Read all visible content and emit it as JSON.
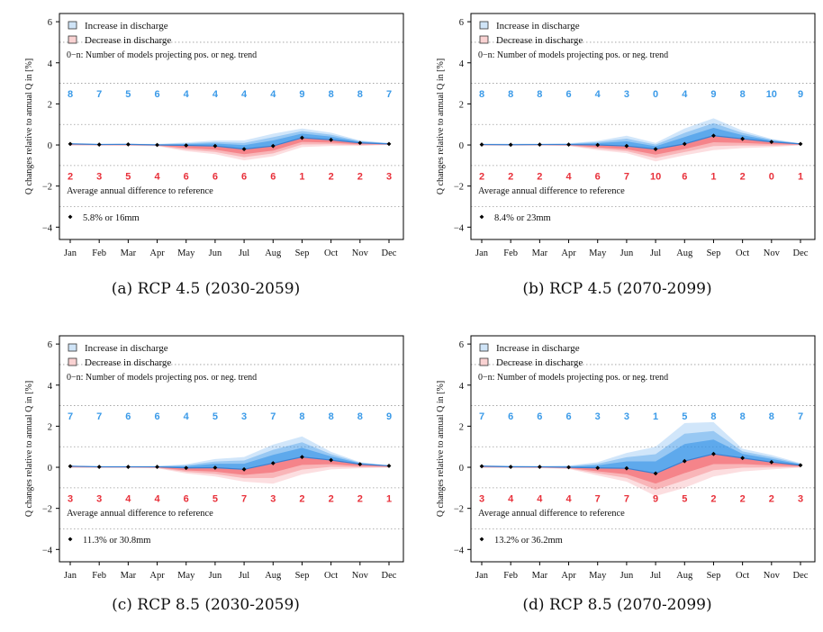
{
  "labels": {
    "ylabel": "Q changes relative to annual Q in [%]",
    "legend_increase": "Increase in discharge",
    "legend_decrease": "Decrease in discharge",
    "legend_count": "0−n: Number of models projecting pos. or neg. trend",
    "avg_title": "Average annual difference to reference"
  },
  "colors": {
    "increase": "#2f8fe6",
    "decrease": "#ef4a52",
    "increase_count_text": "#3a9ae8",
    "decrease_count_text": "#e8303a"
  },
  "chart_data": [
    {
      "type": "area",
      "caption": "(a)  RCP 4.5 (2030-2059)",
      "categories": [
        "Jan",
        "Feb",
        "Mar",
        "Apr",
        "May",
        "Jun",
        "Jul",
        "Aug",
        "Sep",
        "Oct",
        "Nov",
        "Dec"
      ],
      "ylim": [
        -4.6,
        6.4
      ],
      "yticks": [
        -4,
        -2,
        0,
        2,
        4,
        6
      ],
      "grid": true,
      "median": [
        0.05,
        0.02,
        0.03,
        0.0,
        -0.02,
        -0.05,
        -0.2,
        -0.05,
        0.35,
        0.25,
        0.1,
        0.05
      ],
      "increase_band": [
        0.1,
        0.06,
        0.06,
        0.05,
        0.12,
        0.22,
        0.22,
        0.55,
        0.8,
        0.6,
        0.22,
        0.1
      ],
      "decrease_band": [
        -0.03,
        -0.03,
        -0.04,
        -0.06,
        -0.3,
        -0.45,
        -0.75,
        -0.55,
        -0.1,
        -0.05,
        -0.05,
        0.0
      ],
      "n_increase": [
        8,
        7,
        5,
        6,
        4,
        4,
        4,
        4,
        9,
        8,
        8,
        7
      ],
      "n_decrease": [
        2,
        3,
        5,
        4,
        6,
        6,
        6,
        6,
        1,
        2,
        2,
        3
      ],
      "annual_difference": "5.8% or 16mm"
    },
    {
      "type": "area",
      "caption": "(b)  RCP 4.5 (2070-2099)",
      "categories": [
        "Jan",
        "Feb",
        "Mar",
        "Apr",
        "May",
        "Jun",
        "Jul",
        "Aug",
        "Sep",
        "Oct",
        "Nov",
        "Dec"
      ],
      "ylim": [
        -4.6,
        6.4
      ],
      "yticks": [
        -4,
        -2,
        0,
        2,
        4,
        6
      ],
      "grid": true,
      "median": [
        0.02,
        0.01,
        0.02,
        0.02,
        0.0,
        -0.05,
        -0.2,
        0.05,
        0.45,
        0.3,
        0.15,
        0.05
      ],
      "increase_band": [
        0.06,
        0.06,
        0.06,
        0.08,
        0.2,
        0.45,
        0.1,
        0.8,
        1.3,
        0.7,
        0.3,
        0.08
      ],
      "decrease_band": [
        -0.03,
        -0.03,
        -0.03,
        -0.05,
        -0.25,
        -0.4,
        -0.8,
        -0.5,
        -0.25,
        -0.15,
        -0.1,
        -0.02
      ],
      "n_increase": [
        8,
        8,
        8,
        6,
        4,
        3,
        0,
        4,
        9,
        8,
        10,
        9
      ],
      "n_decrease": [
        2,
        2,
        2,
        4,
        6,
        7,
        10,
        6,
        1,
        2,
        0,
        1
      ],
      "annual_difference": "8.4% or 23mm"
    },
    {
      "type": "area",
      "caption": "(c)  RCP 8.5 (2030-2059)",
      "categories": [
        "Jan",
        "Feb",
        "Mar",
        "Apr",
        "May",
        "Jun",
        "Jul",
        "Aug",
        "Sep",
        "Oct",
        "Nov",
        "Dec"
      ],
      "ylim": [
        -4.6,
        6.4
      ],
      "yticks": [
        -4,
        -2,
        0,
        2,
        4,
        6
      ],
      "grid": true,
      "median": [
        0.05,
        0.02,
        0.02,
        0.02,
        -0.03,
        -0.02,
        -0.1,
        0.2,
        0.5,
        0.35,
        0.15,
        0.07
      ],
      "increase_band": [
        0.08,
        0.06,
        0.06,
        0.06,
        0.15,
        0.4,
        0.5,
        1.1,
        1.5,
        0.75,
        0.25,
        0.1
      ],
      "decrease_band": [
        -0.03,
        -0.03,
        -0.03,
        -0.05,
        -0.3,
        -0.45,
        -0.7,
        -0.8,
        -0.35,
        -0.1,
        -0.05,
        -0.02
      ],
      "n_increase": [
        7,
        7,
        6,
        6,
        4,
        5,
        3,
        7,
        8,
        8,
        8,
        9
      ],
      "n_decrease": [
        3,
        3,
        4,
        4,
        6,
        5,
        7,
        3,
        2,
        2,
        2,
        1
      ],
      "annual_difference": "11.3% or 30.8mm"
    },
    {
      "type": "area",
      "caption": "(d)  RCP 8.5 (2070-2099)",
      "categories": [
        "Jan",
        "Feb",
        "Mar",
        "Apr",
        "May",
        "Jun",
        "Jul",
        "Aug",
        "Sep",
        "Oct",
        "Nov",
        "Dec"
      ],
      "ylim": [
        -4.6,
        6.4
      ],
      "yticks": [
        -4,
        -2,
        0,
        2,
        4,
        6
      ],
      "grid": true,
      "median": [
        0.05,
        0.02,
        0.02,
        0.0,
        -0.03,
        -0.05,
        -0.3,
        0.3,
        0.65,
        0.45,
        0.25,
        0.1
      ],
      "increase_band": [
        0.1,
        0.08,
        0.06,
        0.08,
        0.25,
        0.7,
        1.0,
        2.15,
        2.2,
        0.9,
        0.6,
        0.2
      ],
      "decrease_band": [
        -0.03,
        -0.03,
        -0.04,
        -0.08,
        -0.4,
        -0.7,
        -1.4,
        -1.0,
        -0.45,
        -0.2,
        -0.1,
        -0.02
      ],
      "n_increase": [
        7,
        6,
        6,
        6,
        3,
        3,
        1,
        5,
        8,
        8,
        8,
        7
      ],
      "n_decrease": [
        3,
        4,
        4,
        4,
        7,
        7,
        9,
        5,
        2,
        2,
        2,
        3
      ],
      "annual_difference": "13.2% or 36.2mm"
    }
  ]
}
